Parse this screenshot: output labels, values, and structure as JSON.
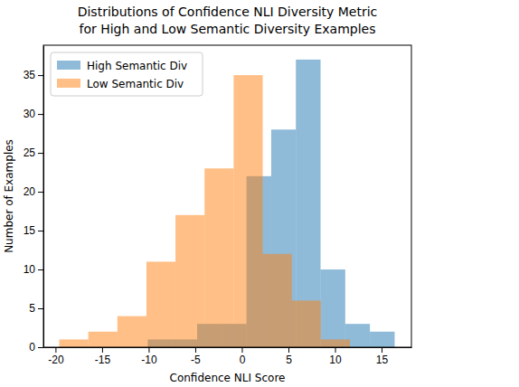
{
  "chart_data": {
    "type": "histogram",
    "title": [
      "Distributions of Confidence NLI Diversity Metric",
      "for High and Low Semantic Diversity Examples"
    ],
    "x_label": "Confidence NLI Score",
    "y_label": "Number of Examples",
    "xlim": [
      -21.3,
      18.2
    ],
    "xticks": [
      -20,
      -15,
      -10,
      -5,
      0,
      5,
      10,
      15
    ],
    "ylim": [
      0,
      38.85
    ],
    "yticks": [
      0,
      5,
      10,
      15,
      20,
      25,
      30,
      35
    ],
    "grid": false,
    "legend": "upper left",
    "series": [
      {
        "name": "High Semantic Div",
        "color": "#1f77b4",
        "bins": [
          -10.1,
          -7.45,
          -4.8,
          -2.15,
          0.5,
          3.15,
          5.8,
          8.45,
          11.1,
          13.75,
          16.4
        ],
        "values": [
          1,
          1,
          3,
          3,
          22,
          28,
          37,
          10,
          3,
          2
        ]
      },
      {
        "name": "Low Semantic Div",
        "color": "#ff7f0e",
        "bins": [
          -19.6,
          -16.48,
          -13.36,
          -10.24,
          -7.12,
          -4.0,
          -0.88,
          2.24,
          5.36,
          8.48,
          11.6
        ],
        "values": [
          1,
          2,
          4,
          11,
          17,
          23,
          35,
          12,
          6,
          1
        ]
      }
    ]
  }
}
